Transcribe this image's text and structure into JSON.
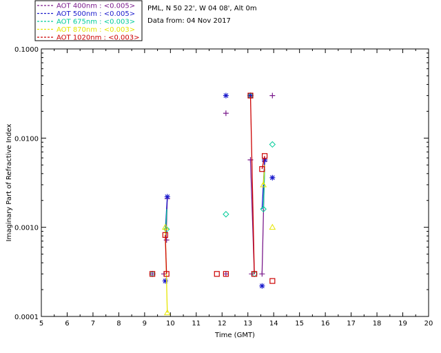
{
  "info": {
    "site": "PML, N 50 22', W 04 08', Alt 0m",
    "date": "Data from: 04 Nov 2017"
  },
  "chart_data": {
    "type": "scatter",
    "title": "",
    "xlabel": "Time (GMT)",
    "ylabel": "Imaginary Part of Refractive Index",
    "xlim": [
      5,
      20
    ],
    "ylim": [
      0.0001,
      0.1
    ],
    "yscale": "log",
    "x_ticks": [
      5,
      6,
      7,
      8,
      9,
      10,
      11,
      12,
      13,
      14,
      15,
      16,
      17,
      18,
      19,
      20
    ],
    "y_ticks": [
      {
        "value": 0.0001,
        "label": "0.0001"
      },
      {
        "value": 0.001,
        "label": "0.0010"
      },
      {
        "value": 0.01,
        "label": "0.0100"
      },
      {
        "value": 0.1,
        "label": "0.1000"
      }
    ],
    "grid": false,
    "legend_position": "top-left, above plot",
    "series": [
      {
        "name": "AOT  400nm : <0.005>",
        "color": "#7a1a8c",
        "marker": "plus",
        "points": [
          [
            9.3,
            0.0003
          ],
          [
            9.75,
            0.0003
          ],
          [
            9.85,
            0.00072
          ],
          [
            9.88,
            0.0021
          ],
          [
            12.15,
            0.019
          ],
          [
            12.15,
            0.0003
          ],
          [
            13.1,
            0.0057
          ],
          [
            13.15,
            0.0003
          ],
          [
            13.55,
            0.0003
          ],
          [
            13.65,
            0.0055
          ],
          [
            13.95,
            0.03
          ]
        ],
        "lines": [
          [
            [
              9.83,
              0.00072
            ],
            [
              9.88,
              0.0021
            ]
          ],
          [
            [
              13.1,
              0.0057
            ],
            [
              13.25,
              0.0003
            ]
          ],
          [
            [
              13.55,
              0.0003
            ],
            [
              13.65,
              0.0055
            ]
          ]
        ]
      },
      {
        "name": "AOT  500nm : <0.005>",
        "color": "#1a1acc",
        "marker": "asterisk",
        "points": [
          [
            9.8,
            0.00025
          ],
          [
            9.88,
            0.0022
          ],
          [
            12.15,
            0.03
          ],
          [
            13.1,
            0.03
          ],
          [
            13.55,
            0.00022
          ],
          [
            13.65,
            0.0057
          ],
          [
            13.95,
            0.0036
          ]
        ],
        "lines": [
          [
            [
              9.8,
              0.0009
            ],
            [
              9.88,
              0.0022
            ]
          ],
          [
            [
              13.55,
              0.0016
            ],
            [
              13.65,
              0.0057
            ]
          ]
        ]
      },
      {
        "name": "AOT  675nm : <0.003>",
        "color": "#00cc99",
        "marker": "diamond",
        "points": [
          [
            9.3,
            0.0003
          ],
          [
            9.85,
            0.00095
          ],
          [
            12.15,
            0.0014
          ],
          [
            13.1,
            0.03
          ],
          [
            13.25,
            0.0003
          ],
          [
            13.6,
            0.0016
          ],
          [
            13.95,
            0.0085
          ]
        ],
        "lines": [
          [
            [
              9.82,
              0.00095
            ],
            [
              9.86,
              0.0016
            ]
          ],
          [
            [
              13.6,
              0.0016
            ],
            [
              13.65,
              0.0045
            ]
          ]
        ]
      },
      {
        "name": "AOT  870nm : <0.003>",
        "color": "#e6e600",
        "marker": "triangle",
        "points": [
          [
            9.8,
            0.001
          ],
          [
            9.88,
            0.00011
          ],
          [
            13.6,
            0.003
          ],
          [
            13.95,
            0.001
          ]
        ],
        "lines": [
          [
            [
              9.8,
              0.001
            ],
            [
              9.88,
              0.00011
            ]
          ],
          [
            [
              13.6,
              0.003
            ],
            [
              13.65,
              0.005
            ]
          ]
        ]
      },
      {
        "name": "AOT 1020nm : <0.003>",
        "color": "#cc0000",
        "marker": "square",
        "points": [
          [
            9.3,
            0.0003
          ],
          [
            9.8,
            0.00082
          ],
          [
            9.85,
            0.0003
          ],
          [
            11.8,
            0.0003
          ],
          [
            12.15,
            0.0003
          ],
          [
            13.1,
            0.03
          ],
          [
            13.25,
            0.0003
          ],
          [
            13.55,
            0.0045
          ],
          [
            13.65,
            0.0063
          ],
          [
            13.95,
            0.00025
          ]
        ],
        "lines": [
          [
            [
              9.8,
              0.00082
            ],
            [
              9.85,
              0.0003
            ]
          ],
          [
            [
              13.1,
              0.03
            ],
            [
              13.25,
              0.0003
            ]
          ],
          [
            [
              13.55,
              0.0045
            ],
            [
              13.65,
              0.0063
            ]
          ]
        ]
      }
    ]
  }
}
